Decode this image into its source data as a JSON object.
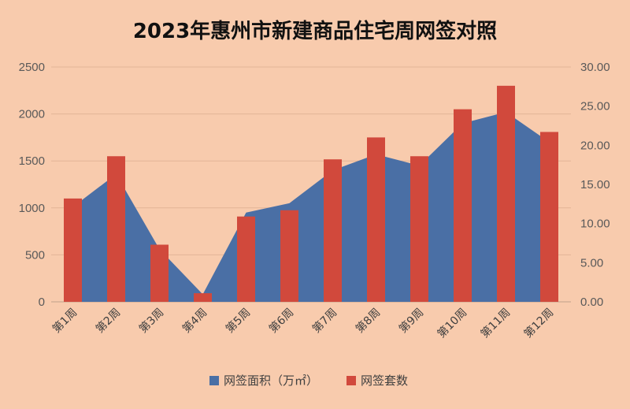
{
  "chart_data": {
    "type": "bar",
    "title": "2023年惠州市新建商品住宅周网签对照",
    "categories": [
      "第1周",
      "第2周",
      "第3周",
      "第4周",
      "第5周",
      "第6周",
      "第7周",
      "第8周",
      "第9周",
      "第10周",
      "第11周",
      "第12周"
    ],
    "series": [
      {
        "name": "网签面积（万㎡）",
        "type": "area",
        "axis": "left",
        "color": "#4a6fa5",
        "values": [
          1010,
          1360,
          560,
          80,
          950,
          1050,
          1400,
          1570,
          1450,
          1900,
          2020,
          1700
        ]
      },
      {
        "name": "网签套数",
        "type": "bar",
        "axis": "right",
        "color": "#d1493c",
        "values": [
          13.2,
          18.6,
          7.3,
          1.1,
          10.9,
          11.7,
          18.2,
          21.0,
          18.6,
          24.6,
          27.6,
          21.7
        ]
      }
    ],
    "y_left": {
      "ylim": [
        0,
        2500
      ],
      "ticks": [
        "0",
        "500",
        "1000",
        "1500",
        "2000",
        "2500"
      ]
    },
    "y_right": {
      "ylim": [
        0,
        30
      ],
      "ticks": [
        "0.00",
        "5.00",
        "10.00",
        "15.00",
        "20.00",
        "25.00",
        "30.00"
      ]
    },
    "grid": true,
    "legend_position": "bottom"
  },
  "colors": {
    "background": "#f8cbad",
    "grid": "#e2b497"
  }
}
